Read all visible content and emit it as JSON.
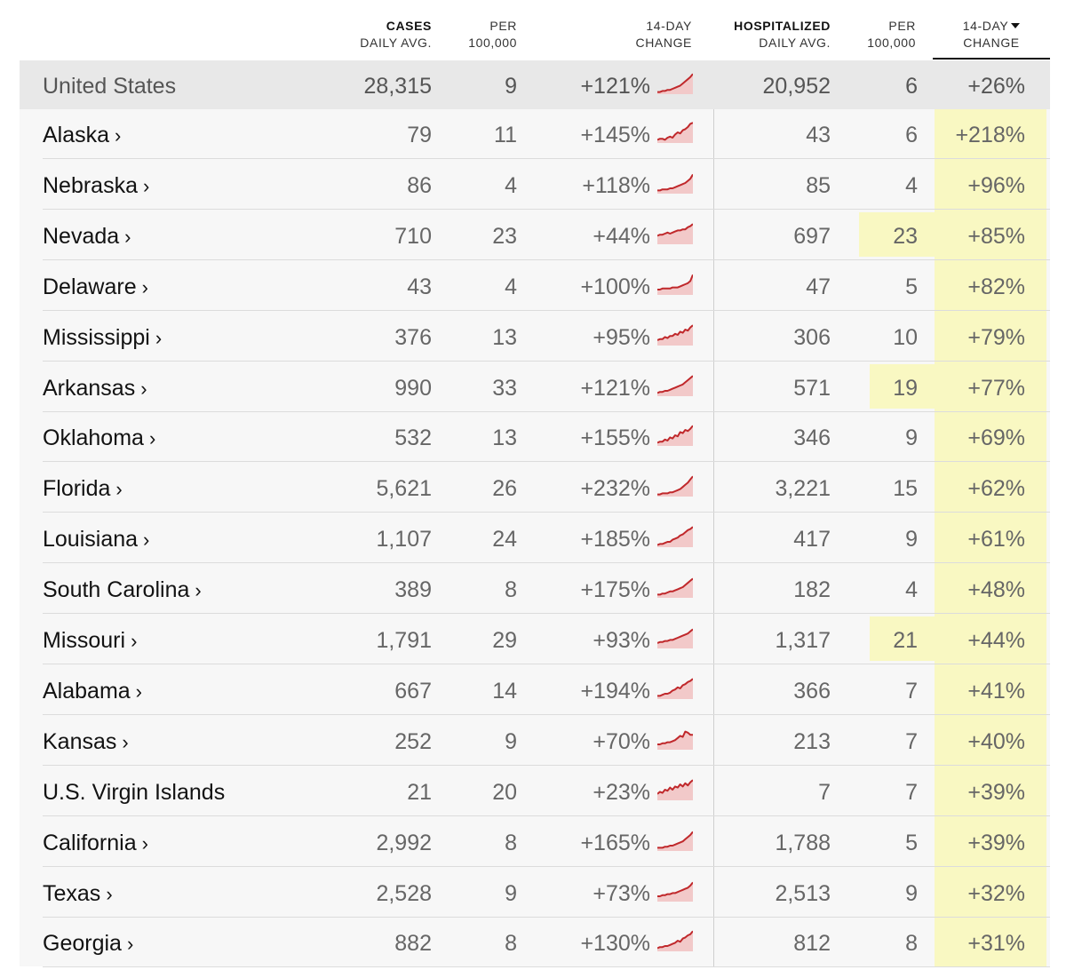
{
  "header": {
    "cases_label_1": "CASES",
    "cases_label_2": "DAILY AVG.",
    "cases_per_1": "PER",
    "cases_per_2": "100,000",
    "cases_change_1": "14-DAY",
    "cases_change_2": "CHANGE",
    "hosp_label_1": "HOSPITALIZED",
    "hosp_label_2": "DAILY AVG.",
    "hosp_per_1": "PER",
    "hosp_per_2": "100,000",
    "hosp_change_1": "14-DAY",
    "hosp_change_2": "CHANGE",
    "sort_icon": "caret-down-icon"
  },
  "colors": {
    "highlight": "#f9f8c2",
    "sparkline_stroke": "#c0282b",
    "sparkline_fill": "#f2c9c9"
  },
  "rows": [
    {
      "name": "United States",
      "chevron": "",
      "cases": "28,315",
      "cases_per": "9",
      "cases_change": "+121%",
      "hosp": "20,952",
      "hosp_per": "6",
      "hosp_change": "+26%",
      "hosp_per_highlight": false,
      "spark": [
        2,
        2,
        3,
        3,
        4,
        4,
        5,
        6,
        7,
        8,
        10,
        12,
        14,
        16,
        19
      ]
    },
    {
      "name": "Alaska",
      "chevron": "›",
      "cases": "79",
      "cases_per": "11",
      "cases_change": "+145%",
      "hosp": "43",
      "hosp_per": "6",
      "hosp_change": "+218%",
      "hosp_per_highlight": false,
      "spark": [
        3,
        4,
        4,
        3,
        5,
        6,
        5,
        8,
        10,
        9,
        12,
        13,
        15,
        18,
        19
      ]
    },
    {
      "name": "Nebraska",
      "chevron": "›",
      "cases": "86",
      "cases_per": "4",
      "cases_change": "+118%",
      "hosp": "85",
      "hosp_per": "4",
      "hosp_change": "+96%",
      "hosp_per_highlight": false,
      "spark": [
        3,
        3,
        4,
        4,
        4,
        5,
        5,
        6,
        7,
        8,
        9,
        10,
        12,
        14,
        18
      ]
    },
    {
      "name": "Nevada",
      "chevron": "›",
      "cases": "710",
      "cases_per": "23",
      "cases_change": "+44%",
      "hosp": "697",
      "hosp_per": "23",
      "hosp_change": "+85%",
      "hosp_per_highlight": true,
      "spark": [
        8,
        9,
        9,
        10,
        11,
        10,
        11,
        12,
        13,
        13,
        14,
        14,
        16,
        17,
        19
      ]
    },
    {
      "name": "Delaware",
      "chevron": "›",
      "cases": "43",
      "cases_per": "4",
      "cases_change": "+100%",
      "hosp": "47",
      "hosp_per": "5",
      "hosp_change": "+82%",
      "hosp_per_highlight": false,
      "spark": [
        5,
        5,
        6,
        6,
        6,
        6,
        7,
        7,
        7,
        8,
        9,
        10,
        11,
        13,
        19
      ]
    },
    {
      "name": "Mississippi",
      "chevron": "›",
      "cases": "376",
      "cases_per": "13",
      "cases_change": "+95%",
      "hosp": "306",
      "hosp_per": "10",
      "hosp_change": "+79%",
      "hosp_per_highlight": false,
      "spark": [
        5,
        6,
        6,
        8,
        7,
        9,
        9,
        11,
        10,
        13,
        12,
        15,
        14,
        17,
        19
      ]
    },
    {
      "name": "Arkansas",
      "chevron": "›",
      "cases": "990",
      "cases_per": "33",
      "cases_change": "+121%",
      "hosp": "571",
      "hosp_per": "19",
      "hosp_change": "+77%",
      "hosp_per_highlight": true,
      "spark": [
        3,
        4,
        4,
        5,
        5,
        6,
        7,
        8,
        9,
        10,
        11,
        13,
        15,
        17,
        19
      ]
    },
    {
      "name": "Oklahoma",
      "chevron": "›",
      "cases": "532",
      "cases_per": "13",
      "cases_change": "+155%",
      "hosp": "346",
      "hosp_per": "9",
      "hosp_change": "+69%",
      "hosp_per_highlight": false,
      "spark": [
        3,
        4,
        4,
        6,
        5,
        8,
        7,
        10,
        9,
        13,
        12,
        15,
        14,
        16,
        19
      ]
    },
    {
      "name": "Florida",
      "chevron": "›",
      "cases": "5,621",
      "cases_per": "26",
      "cases_change": "+232%",
      "hosp": "3,221",
      "hosp_per": "15",
      "hosp_change": "+62%",
      "hosp_per_highlight": false,
      "spark": [
        2,
        2,
        3,
        3,
        3,
        4,
        4,
        5,
        6,
        7,
        9,
        11,
        13,
        16,
        19
      ]
    },
    {
      "name": "Louisiana",
      "chevron": "›",
      "cases": "1,107",
      "cases_per": "24",
      "cases_change": "+185%",
      "hosp": "417",
      "hosp_per": "9",
      "hosp_change": "+61%",
      "hosp_per_highlight": false,
      "spark": [
        2,
        3,
        3,
        4,
        5,
        5,
        7,
        8,
        9,
        11,
        12,
        14,
        16,
        17,
        19
      ]
    },
    {
      "name": "South Carolina",
      "chevron": "›",
      "cases": "389",
      "cases_per": "8",
      "cases_change": "+175%",
      "hosp": "182",
      "hosp_per": "4",
      "hosp_change": "+48%",
      "hosp_per_highlight": false,
      "spark": [
        3,
        3,
        4,
        4,
        5,
        6,
        6,
        7,
        8,
        9,
        10,
        12,
        14,
        16,
        18
      ]
    },
    {
      "name": "Missouri",
      "chevron": "›",
      "cases": "1,791",
      "cases_per": "29",
      "cases_change": "+93%",
      "hosp": "1,317",
      "hosp_per": "21",
      "hosp_change": "+44%",
      "hosp_per_highlight": true,
      "spark": [
        5,
        6,
        6,
        7,
        7,
        8,
        8,
        9,
        10,
        11,
        12,
        13,
        14,
        16,
        18
      ]
    },
    {
      "name": "Alabama",
      "chevron": "›",
      "cases": "667",
      "cases_per": "14",
      "cases_change": "+194%",
      "hosp": "366",
      "hosp_per": "7",
      "hosp_change": "+41%",
      "hosp_per_highlight": false,
      "spark": [
        3,
        3,
        4,
        5,
        5,
        6,
        8,
        9,
        11,
        10,
        13,
        14,
        16,
        17,
        19
      ]
    },
    {
      "name": "Kansas",
      "chevron": "›",
      "cases": "252",
      "cases_per": "9",
      "cases_change": "+70%",
      "hosp": "213",
      "hosp_per": "7",
      "hosp_change": "+40%",
      "hosp_per_highlight": false,
      "spark": [
        5,
        5,
        6,
        6,
        7,
        7,
        8,
        9,
        11,
        13,
        12,
        17,
        16,
        14,
        14
      ]
    },
    {
      "name": "U.S. Virgin Islands",
      "chevron": "",
      "cases": "21",
      "cases_per": "20",
      "cases_change": "+23%",
      "hosp": "7",
      "hosp_per": "7",
      "hosp_change": "+39%",
      "hosp_per_highlight": false,
      "spark": [
        6,
        8,
        7,
        10,
        9,
        12,
        10,
        13,
        12,
        15,
        13,
        16,
        14,
        17,
        19
      ]
    },
    {
      "name": "California",
      "chevron": "›",
      "cases": "2,992",
      "cases_per": "8",
      "cases_change": "+165%",
      "hosp": "1,788",
      "hosp_per": "5",
      "hosp_change": "+39%",
      "hosp_per_highlight": false,
      "spark": [
        3,
        3,
        3,
        4,
        4,
        5,
        5,
        6,
        7,
        8,
        9,
        11,
        13,
        15,
        18
      ]
    },
    {
      "name": "Texas",
      "chevron": "›",
      "cases": "2,528",
      "cases_per": "9",
      "cases_change": "+73%",
      "hosp": "2,513",
      "hosp_per": "9",
      "hosp_change": "+32%",
      "hosp_per_highlight": false,
      "spark": [
        5,
        5,
        6,
        6,
        7,
        7,
        8,
        8,
        9,
        10,
        11,
        12,
        13,
        15,
        18
      ]
    },
    {
      "name": "Georgia",
      "chevron": "›",
      "cases": "882",
      "cases_per": "8",
      "cases_change": "+130%",
      "hosp": "812",
      "hosp_per": "8",
      "hosp_change": "+31%",
      "hosp_per_highlight": false,
      "spark": [
        3,
        4,
        4,
        5,
        5,
        6,
        7,
        8,
        10,
        9,
        12,
        13,
        15,
        16,
        19
      ]
    }
  ]
}
